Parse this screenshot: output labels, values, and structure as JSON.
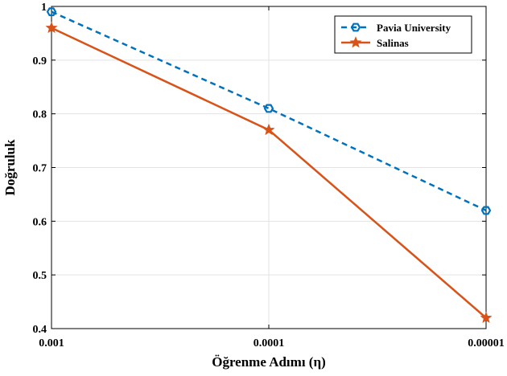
{
  "chart_data": {
    "type": "line",
    "x_categories": [
      "0.001",
      "0.0001",
      "0.00001"
    ],
    "xlabel": "Öğrenme Adımı (η)",
    "ylabel": "Doğruluk",
    "ylim": [
      0.4,
      1.0
    ],
    "y_ticks": [
      "0.4",
      "0.5",
      "0.6",
      "0.7",
      "0.8",
      "0.9",
      "1"
    ],
    "grid": true,
    "legend_position": "top-right",
    "series": [
      {
        "name": "Pavia University",
        "values": [
          0.99,
          0.81,
          0.62
        ],
        "color": "#0072BD",
        "line_style": "dashed",
        "marker": "hexagon"
      },
      {
        "name": "Salinas",
        "values": [
          0.96,
          0.77,
          0.42
        ],
        "color": "#D95319",
        "line_style": "solid",
        "marker": "star"
      }
    ]
  }
}
